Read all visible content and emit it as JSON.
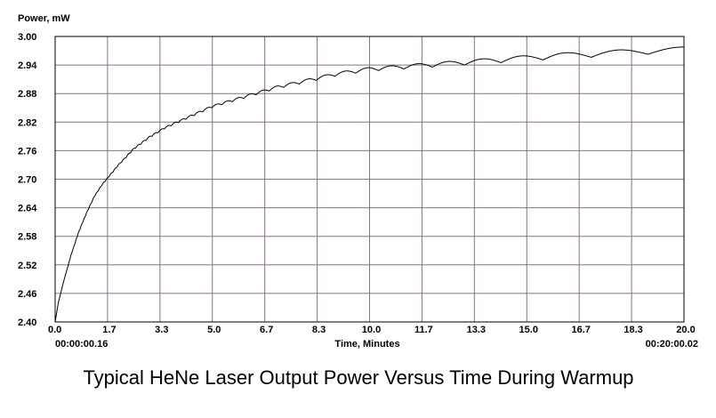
{
  "chart_data": {
    "type": "line",
    "title": "Typical HeNe Laser Output Power Versus Time During Warmup",
    "ylabel": "Power, mW",
    "xlabel": "Time, Minutes",
    "xlim": [
      0,
      20
    ],
    "ylim": [
      2.4,
      3.0
    ],
    "x_ticks": [
      "0.0",
      "1.7",
      "3.3",
      "5.0",
      "6.7",
      "8.3",
      "10.0",
      "11.7",
      "13.3",
      "15.0",
      "16.7",
      "18.3",
      "20.0"
    ],
    "y_ticks": [
      "3.00",
      "2.94",
      "2.88",
      "2.82",
      "2.76",
      "2.70",
      "2.64",
      "2.58",
      "2.52",
      "2.46",
      "2.40"
    ],
    "start_timestamp": "00:00:00.16",
    "end_timestamp": "00:20:00.02",
    "grid": true,
    "colors": {
      "grid": "#8c6d8c",
      "line": "#000000",
      "frame": "#000000"
    },
    "series": [
      {
        "x": [
          0.0,
          0.1,
          0.25,
          0.5,
          0.75,
          1.0,
          1.25,
          1.5,
          1.75,
          2.0,
          2.5,
          3.0,
          3.5,
          4.0,
          4.5,
          5.0,
          6.0,
          7.0,
          8.0,
          9.0,
          10.0,
          11.0,
          12.0,
          13.0,
          14.0,
          15.0,
          16.0,
          17.0,
          18.0,
          19.0,
          20.0
        ],
        "y": [
          2.4,
          2.44,
          2.48,
          2.54,
          2.59,
          2.63,
          2.665,
          2.69,
          2.71,
          2.73,
          2.765,
          2.79,
          2.81,
          2.825,
          2.84,
          2.855,
          2.875,
          2.895,
          2.91,
          2.925,
          2.935,
          2.94,
          2.945,
          2.95,
          2.955,
          2.96,
          2.965,
          2.968,
          2.972,
          2.975,
          2.978
        ]
      }
    ]
  }
}
